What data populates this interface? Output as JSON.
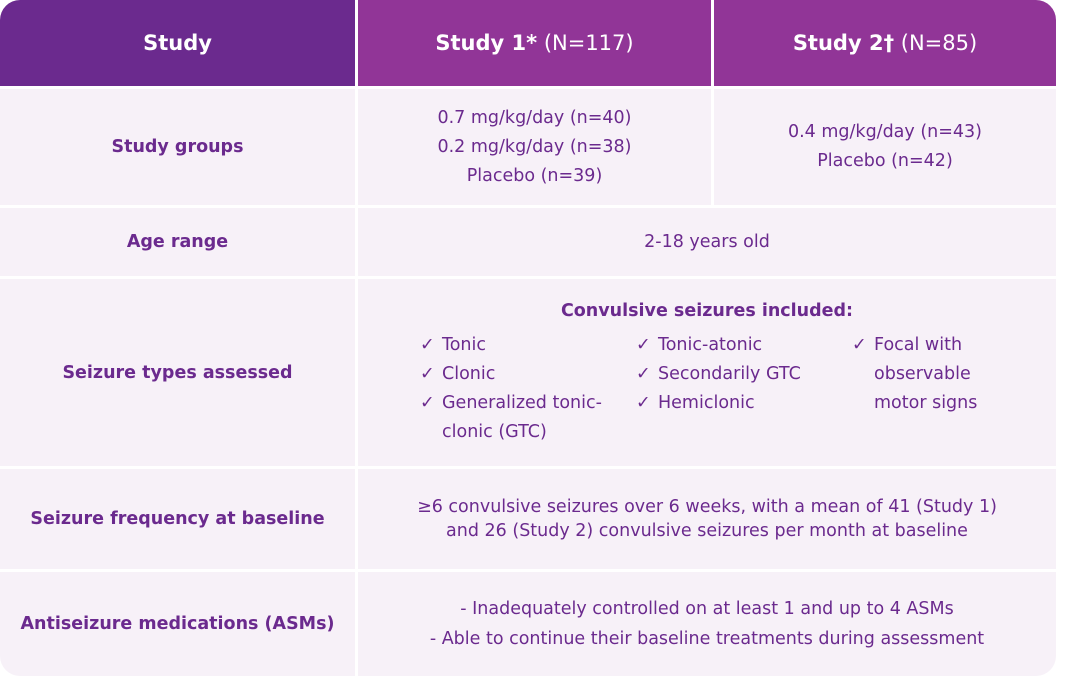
{
  "header": {
    "study": "Study",
    "study1_name": "Study 1*",
    "study1_n": " (N=117)",
    "study2_name": "Study 2†",
    "study2_n": " (N=85)"
  },
  "rows": {
    "groups": {
      "label": "Study groups",
      "study1": [
        "0.7 mg/kg/day (n=40)",
        "0.2 mg/kg/day (n=38)",
        "Placebo (n=39)"
      ],
      "study2": [
        "0.4 mg/kg/day (n=43)",
        "Placebo (n=42)"
      ]
    },
    "age": {
      "label": "Age range",
      "value": "2-18 years old"
    },
    "seizure_types": {
      "label": "Seizure types assessed",
      "title": "Convulsive seizures included:",
      "check_glyph": "✓",
      "col1": [
        "Tonic",
        "Clonic",
        "Generalized tonic-clonic (GTC)"
      ],
      "col2": [
        "Tonic-atonic",
        "Secondarily GTC",
        "Hemiclonic"
      ],
      "col3": [
        "Focal with observable motor signs"
      ]
    },
    "frequency": {
      "label": "Seizure frequency at baseline",
      "lines": [
        "≥6 convulsive seizures over 6 weeks, with a mean of 41 (Study 1)",
        "and 26 (Study 2) convulsive seizures per month at baseline"
      ]
    },
    "asms": {
      "label": "Antiseizure medications (ASMs)",
      "lines": [
        "- Inadequately controlled on at least 1 and up to 4 ASMs",
        "- Able to continue their baseline treatments during assessment"
      ]
    }
  },
  "colors": {
    "header_dark": "#6b2a8e",
    "header_light": "#913597",
    "row_bg": "#f7f1f8",
    "text": "#6b2a8e"
  }
}
